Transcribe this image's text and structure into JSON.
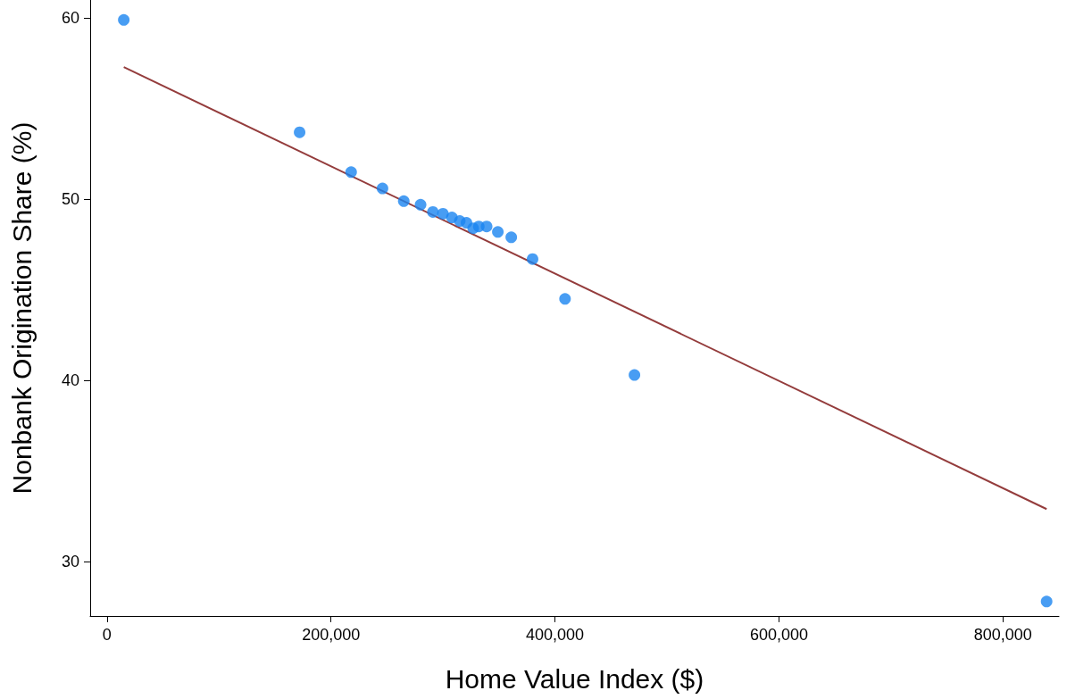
{
  "chart_data": {
    "type": "scatter",
    "xlabel": "Home Value Index ($)",
    "ylabel": "Nonbank Origination Share (%)",
    "xlim": [
      -15000,
      850000
    ],
    "ylim": [
      27,
      61
    ],
    "xticks": [
      {
        "value": 0,
        "label": "0"
      },
      {
        "value": 200000,
        "label": "200,000"
      },
      {
        "value": 400000,
        "label": "400,000"
      },
      {
        "value": 600000,
        "label": "600,000"
      },
      {
        "value": 800000,
        "label": "800,000"
      }
    ],
    "yticks": [
      30,
      40,
      50,
      60
    ],
    "grid": false,
    "marker": "circle",
    "series": [
      {
        "color": "#1a85f0",
        "x": [
          15000,
          172000,
          218000,
          246000,
          265000,
          280000,
          291000,
          300000,
          308000,
          315000,
          321000,
          327000,
          332000,
          339000,
          349000,
          361000,
          380000,
          409000,
          471000,
          839000
        ],
        "values": [
          59.9,
          53.7,
          51.5,
          50.6,
          49.9,
          49.7,
          49.3,
          49.2,
          49.0,
          48.8,
          48.7,
          48.4,
          48.5,
          48.5,
          48.2,
          47.9,
          46.7,
          44.5,
          40.3,
          27.8
        ]
      },
      {
        "type": "line",
        "color": "#943c3c",
        "line_style": "solid",
        "marker": "none",
        "x": [
          15000,
          839000
        ],
        "values": [
          57.3,
          32.9
        ]
      }
    ]
  }
}
